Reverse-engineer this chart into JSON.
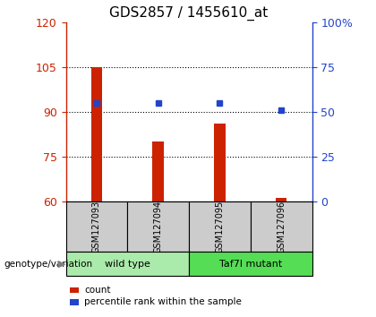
{
  "title": "GDS2857 / 1455610_at",
  "samples": [
    "GSM127093",
    "GSM127094",
    "GSM127095",
    "GSM127096"
  ],
  "bar_values": [
    105,
    80,
    86,
    61
  ],
  "blue_values_pct": [
    55,
    55,
    55,
    51
  ],
  "ylim_left": [
    60,
    120
  ],
  "ylim_right": [
    0,
    100
  ],
  "yticks_left": [
    60,
    75,
    90,
    105,
    120
  ],
  "yticks_right": [
    0,
    25,
    50,
    75,
    100
  ],
  "ytick_labels_right": [
    "0",
    "25",
    "50",
    "75",
    "100%"
  ],
  "bar_color": "#cc2200",
  "blue_color": "#2244cc",
  "groups": [
    {
      "label": "wild type",
      "indices": [
        0,
        1
      ],
      "color": "#aaeaaa"
    },
    {
      "label": "Taf7l mutant",
      "indices": [
        2,
        3
      ],
      "color": "#55dd55"
    }
  ],
  "group_label_text": "genotype/variation",
  "legend_items": [
    {
      "color": "#cc2200",
      "label": "count"
    },
    {
      "color": "#2244cc",
      "label": "percentile rank within the sample"
    }
  ],
  "sample_box_color": "#cccccc",
  "title_fontsize": 11,
  "tick_fontsize": 9,
  "bar_width": 0.18
}
